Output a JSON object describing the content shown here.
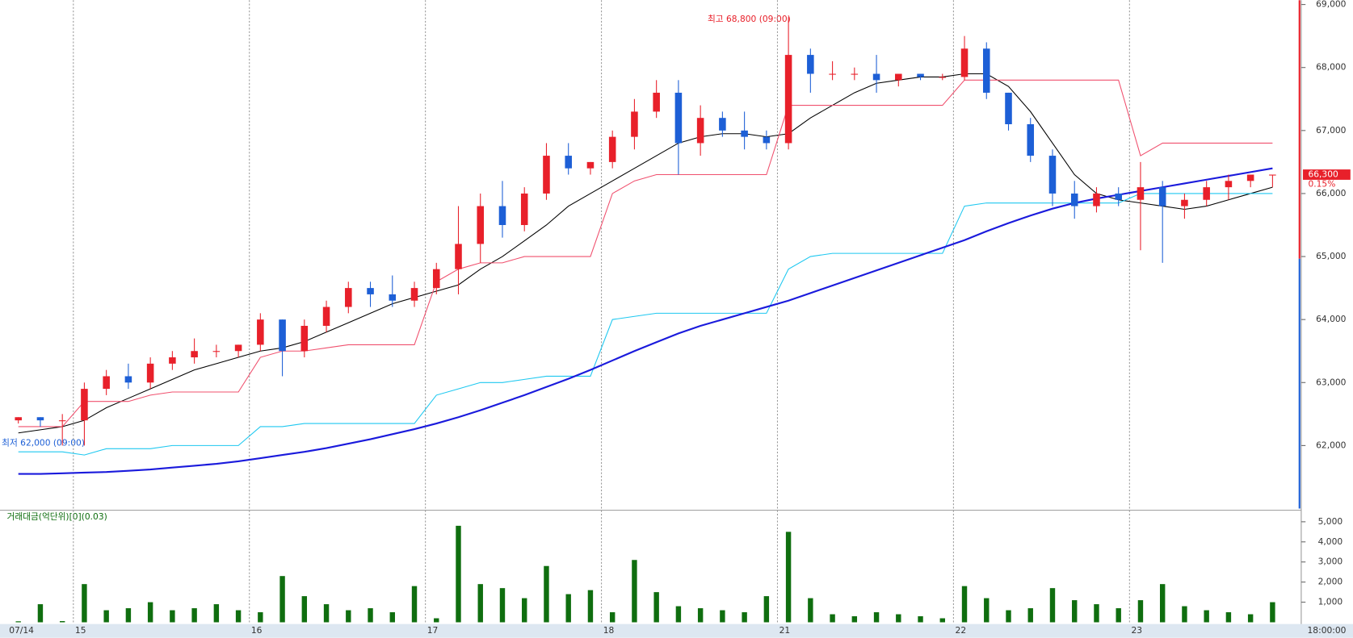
{
  "chart_data": {
    "type": "candlestick",
    "open": [
      62400,
      62450,
      62400,
      62400,
      62900,
      63100,
      63000,
      63300,
      63400,
      63500,
      63500,
      63600,
      64000,
      63500,
      63900,
      64200,
      64500,
      64400,
      64300,
      64500,
      64800,
      65200,
      65800,
      65500,
      66000,
      66600,
      66400,
      66500,
      66900,
      67300,
      67600,
      66800,
      67200,
      67000,
      66900,
      66800,
      68200,
      67900,
      67900,
      67900,
      67800,
      67900,
      67850,
      67850,
      68300,
      67600,
      67100,
      66600,
      66000,
      65800,
      66000,
      65900,
      66100,
      65800,
      65900,
      66100,
      66200,
      66300
    ],
    "high": [
      62450,
      62450,
      62500,
      63000,
      63200,
      63300,
      63400,
      63500,
      63700,
      63600,
      63600,
      64100,
      64000,
      64000,
      64300,
      64600,
      64600,
      64700,
      64600,
      64900,
      65800,
      66000,
      66200,
      66100,
      66800,
      66800,
      66500,
      67000,
      67500,
      67800,
      67800,
      67400,
      67300,
      67300,
      67000,
      68800,
      68300,
      68100,
      68000,
      68200,
      67900,
      67900,
      67900,
      68500,
      68400,
      67600,
      67200,
      66700,
      66200,
      66100,
      66100,
      66500,
      66200,
      66000,
      66200,
      66300,
      66300,
      66300
    ],
    "low": [
      62350,
      62300,
      62000,
      62000,
      62800,
      62900,
      62900,
      63200,
      63300,
      63400,
      63400,
      63500,
      63100,
      63400,
      63800,
      64100,
      64200,
      64200,
      64200,
      64400,
      64400,
      64900,
      65300,
      65400,
      65900,
      66300,
      66300,
      66400,
      66700,
      67200,
      66300,
      66600,
      66900,
      66700,
      66700,
      66700,
      67600,
      67800,
      67800,
      67600,
      67700,
      67800,
      67800,
      67800,
      67500,
      67000,
      66500,
      65800,
      65600,
      65700,
      65800,
      65100,
      64900,
      65600,
      65800,
      65900,
      66100,
      66100
    ],
    "close": [
      62450,
      62400,
      62400,
      62900,
      63100,
      63000,
      63300,
      63400,
      63500,
      63500,
      63600,
      64000,
      63500,
      63900,
      64200,
      64500,
      64400,
      64300,
      64500,
      64800,
      65200,
      65800,
      65500,
      66000,
      66600,
      66400,
      66500,
      66900,
      67300,
      67600,
      66800,
      67200,
      67000,
      66900,
      66800,
      68200,
      67900,
      67900,
      67900,
      67800,
      67900,
      67850,
      67850,
      68300,
      67600,
      67100,
      66600,
      66000,
      65800,
      66000,
      65900,
      66100,
      65800,
      65900,
      66100,
      66200,
      66300,
      66300
    ],
    "lines": [
      {
        "color": "#000000",
        "values": [
          62200,
          62250,
          62300,
          62400,
          62600,
          62750,
          62900,
          63050,
          63200,
          63300,
          63400,
          63500,
          63550,
          63650,
          63800,
          63950,
          64100,
          64250,
          64350,
          64450,
          64550,
          64800,
          65000,
          65250,
          65500,
          65800,
          66000,
          66200,
          66400,
          66600,
          66800,
          66900,
          66950,
          66950,
          66900,
          66950,
          67200,
          67400,
          67600,
          67750,
          67800,
          67850,
          67850,
          67900,
          67900,
          67700,
          67300,
          66800,
          66300,
          66000,
          65900,
          65850,
          65800,
          65750,
          65800,
          65900,
          66000,
          66100
        ]
      },
      {
        "color": "#f0506e",
        "values": [
          62300,
          62300,
          62300,
          62700,
          62700,
          62700,
          62800,
          62850,
          62850,
          62850,
          62850,
          63400,
          63500,
          63500,
          63550,
          63600,
          63600,
          63600,
          63600,
          64600,
          64800,
          64900,
          64900,
          65000,
          65000,
          65000,
          65000,
          66000,
          66200,
          66300,
          66300,
          66300,
          66300,
          66300,
          66300,
          67400,
          67400,
          67400,
          67400,
          67400,
          67400,
          67400,
          67400,
          67800,
          67800,
          67800,
          67800,
          67800,
          67800,
          67800,
          67800,
          66600,
          66800,
          66800,
          66800,
          66800,
          66800,
          66800
        ]
      },
      {
        "color": "#1ec8f0",
        "values": [
          61900,
          61900,
          61900,
          61850,
          61950,
          61950,
          61950,
          62000,
          62000,
          62000,
          62000,
          62300,
          62300,
          62350,
          62350,
          62350,
          62350,
          62350,
          62350,
          62800,
          62900,
          63000,
          63000,
          63050,
          63100,
          63100,
          63100,
          64000,
          64050,
          64100,
          64100,
          64100,
          64100,
          64100,
          64100,
          64800,
          65000,
          65050,
          65050,
          65050,
          65050,
          65050,
          65050,
          65800,
          65850,
          65850,
          65850,
          65850,
          65850,
          65850,
          65850,
          66000,
          66000,
          66000,
          66000,
          66000,
          66000,
          66000
        ]
      },
      {
        "color": "#1a1adc",
        "values": [
          61550,
          61550,
          61560,
          61570,
          61580,
          61600,
          61620,
          61650,
          61680,
          61710,
          61750,
          61800,
          61850,
          61900,
          61960,
          62030,
          62100,
          62180,
          62260,
          62350,
          62450,
          62560,
          62680,
          62800,
          62930,
          63060,
          63200,
          63350,
          63500,
          63640,
          63780,
          63900,
          64000,
          64100,
          64200,
          64300,
          64420,
          64540,
          64660,
          64780,
          64900,
          65020,
          65140,
          65260,
          65400,
          65530,
          65650,
          65760,
          65850,
          65920,
          65980,
          66040,
          66100,
          66160,
          66220,
          66280,
          66340,
          66400
        ]
      }
    ],
    "up_color": "#e8202a",
    "down_color": "#1d5fd6",
    "ylim": [
      61000,
      69000
    ],
    "yticks": [
      {
        "value": 62000,
        "label": "62,000"
      },
      {
        "value": 63000,
        "label": "63,000"
      },
      {
        "value": 64000,
        "label": "64,000"
      },
      {
        "value": 65000,
        "label": "65,000"
      },
      {
        "value": 66000,
        "label": "66,000"
      },
      {
        "value": 67000,
        "label": "67,000"
      },
      {
        "value": 68000,
        "label": "68,000"
      },
      {
        "value": 69000,
        "label": "69,000"
      }
    ],
    "xticks": [
      {
        "value": 0,
        "label": "07/14"
      },
      {
        "value": 3,
        "label": "15"
      },
      {
        "value": 11,
        "label": "16"
      },
      {
        "value": 19,
        "label": "17"
      },
      {
        "value": 27,
        "label": "18"
      },
      {
        "value": 35,
        "label": "21"
      },
      {
        "value": 43,
        "label": "22"
      },
      {
        "value": 51,
        "label": "23"
      }
    ],
    "x_end_label": "18:00:00",
    "annotations": [
      "최고 68,800 (09:00)",
      "최저 62,000 (09:00)"
    ],
    "last_price_label": "66,300",
    "change_label": "0.15%",
    "volume": {
      "title": "거래대금(억단위)[0](0.03)",
      "color": "#0f6e0f",
      "values": [
        50,
        900,
        60,
        1900,
        600,
        700,
        1000,
        600,
        700,
        900,
        600,
        500,
        2300,
        1300,
        900,
        600,
        700,
        500,
        1800,
        200,
        4800,
        1900,
        1700,
        1200,
        2800,
        1400,
        1600,
        500,
        3100,
        1500,
        800,
        700,
        600,
        500,
        1300,
        4500,
        1200,
        400,
        300,
        500,
        400,
        300,
        200,
        1800,
        1200,
        600,
        700,
        1700,
        1100,
        900,
        700,
        1100,
        1900,
        800,
        600,
        500,
        400,
        1000
      ],
      "ylim": [
        0,
        5400
      ],
      "yticks": [
        {
          "value": 1000,
          "label": "1,000"
        },
        {
          "value": 2000,
          "label": "2,000"
        },
        {
          "value": 3000,
          "label": "3,000"
        },
        {
          "value": 4000,
          "label": "4,000"
        },
        {
          "value": 5000,
          "label": "5,000"
        }
      ]
    }
  }
}
